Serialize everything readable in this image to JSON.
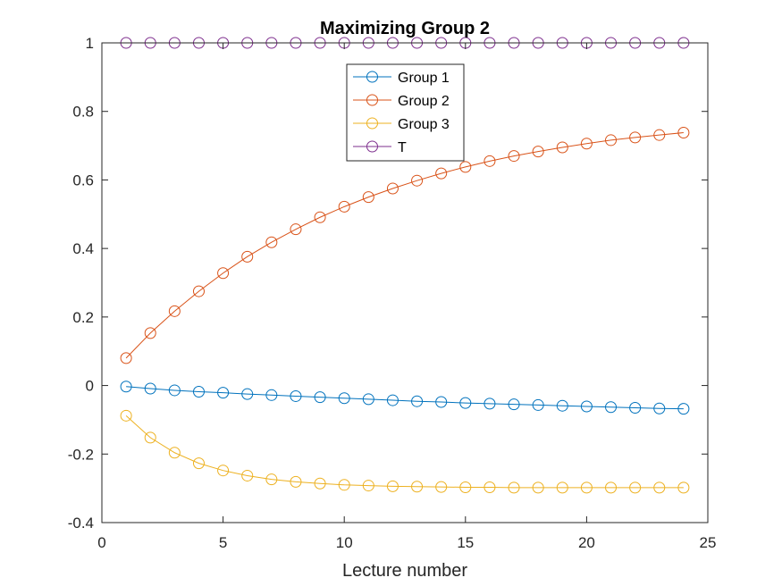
{
  "chart_data": {
    "type": "line",
    "title": "Maximizing Group 2",
    "xlabel": "Lecture number",
    "ylabel": "",
    "xlim": [
      0,
      25
    ],
    "ylim": [
      -0.4,
      1
    ],
    "xticks": [
      0,
      5,
      10,
      15,
      20,
      25
    ],
    "xtick_labels": [
      "0",
      "5",
      "10",
      "15",
      "20",
      "25"
    ],
    "yticks": [
      -0.4,
      -0.2,
      0,
      0.2,
      0.4,
      0.6,
      0.8,
      1
    ],
    "ytick_labels": [
      "-0.4",
      "-0.2",
      "0",
      "0.2",
      "0.4",
      "0.6",
      "0.8",
      "1"
    ],
    "grid": false,
    "marker": "circle",
    "legend_position": "top-center",
    "x": [
      1,
      2,
      3,
      4,
      5,
      6,
      7,
      8,
      9,
      10,
      11,
      12,
      13,
      14,
      15,
      16,
      17,
      18,
      19,
      20,
      21,
      22,
      23,
      24
    ],
    "series": [
      {
        "name": "Group 1",
        "color": "#0072BD",
        "values": [
          -0.003,
          -0.009,
          -0.014,
          -0.018,
          -0.021,
          -0.025,
          -0.028,
          -0.031,
          -0.034,
          -0.037,
          -0.04,
          -0.043,
          -0.046,
          -0.048,
          -0.051,
          -0.053,
          -0.055,
          -0.057,
          -0.059,
          -0.061,
          -0.063,
          -0.065,
          -0.067,
          -0.068
        ]
      },
      {
        "name": "Group 2",
        "color": "#D95319",
        "values": [
          0.08,
          0.153,
          0.217,
          0.275,
          0.328,
          0.376,
          0.418,
          0.456,
          0.491,
          0.522,
          0.55,
          0.575,
          0.598,
          0.619,
          0.638,
          0.655,
          0.67,
          0.683,
          0.695,
          0.706,
          0.716,
          0.724,
          0.731,
          0.738
        ]
      },
      {
        "name": "Group 3",
        "color": "#EDB120",
        "values": [
          -0.088,
          -0.152,
          -0.196,
          -0.227,
          -0.248,
          -0.263,
          -0.274,
          -0.281,
          -0.286,
          -0.29,
          -0.292,
          -0.294,
          -0.295,
          -0.296,
          -0.297,
          -0.297,
          -0.298,
          -0.298,
          -0.298,
          -0.298,
          -0.298,
          -0.298,
          -0.298,
          -0.298
        ]
      },
      {
        "name": "T",
        "color": "#7E2F8E",
        "values": [
          1,
          1,
          1,
          1,
          1,
          1,
          1,
          1,
          1,
          1,
          1,
          1,
          1,
          1,
          1,
          1,
          1,
          1,
          1,
          1,
          1,
          1,
          1,
          1
        ]
      }
    ]
  }
}
